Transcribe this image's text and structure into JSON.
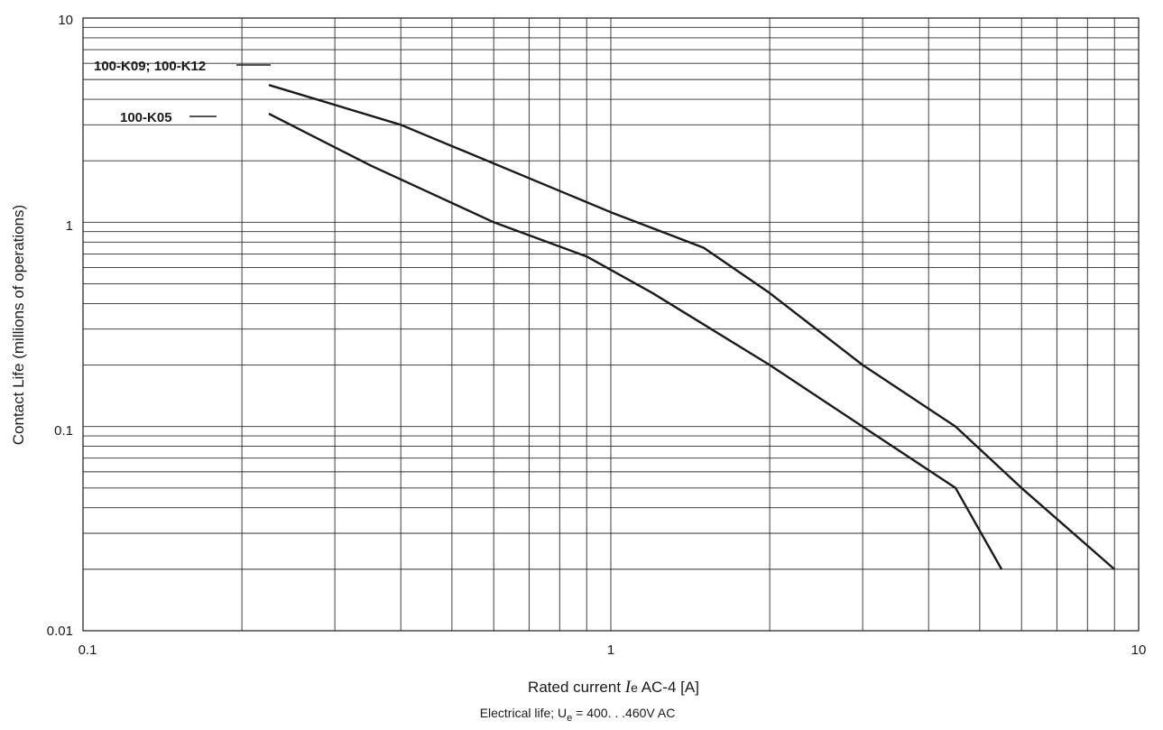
{
  "chart_data": {
    "type": "line",
    "xscale": "log",
    "yscale": "log",
    "xlim": [
      0.1,
      10
    ],
    "ylim": [
      0.01,
      10
    ],
    "grid": true,
    "x_ticks": [
      "0.1",
      "1",
      "10"
    ],
    "y_ticks": [
      "10",
      "1",
      "0.1",
      "0.01"
    ],
    "xlabel_prefix": "Rated current ",
    "xlabel_symbol": "I",
    "xlabel_sub": "e",
    "xlabel_suffix": " AC-4 [A]",
    "ylabel": "Contact Life (millions of operations)",
    "footnote_prefix": "Electrical life; U",
    "footnote_sub": "e",
    "footnote_suffix": " = 400. . .460V AC",
    "series": [
      {
        "name": "100-K09; 100-K12",
        "x": [
          0.225,
          0.4,
          1.0,
          1.5,
          2.0,
          3.0,
          4.5,
          6.0,
          9.0
        ],
        "y": [
          4.7,
          3.0,
          1.12,
          0.75,
          0.45,
          0.2,
          0.1,
          0.05,
          0.02
        ]
      },
      {
        "name": "100-K05",
        "x": [
          0.225,
          0.35,
          0.6,
          0.9,
          1.2,
          2.0,
          3.0,
          4.5,
          5.5
        ],
        "y": [
          3.4,
          1.9,
          1.0,
          0.68,
          0.45,
          0.2,
          0.1,
          0.05,
          0.02
        ]
      }
    ]
  }
}
